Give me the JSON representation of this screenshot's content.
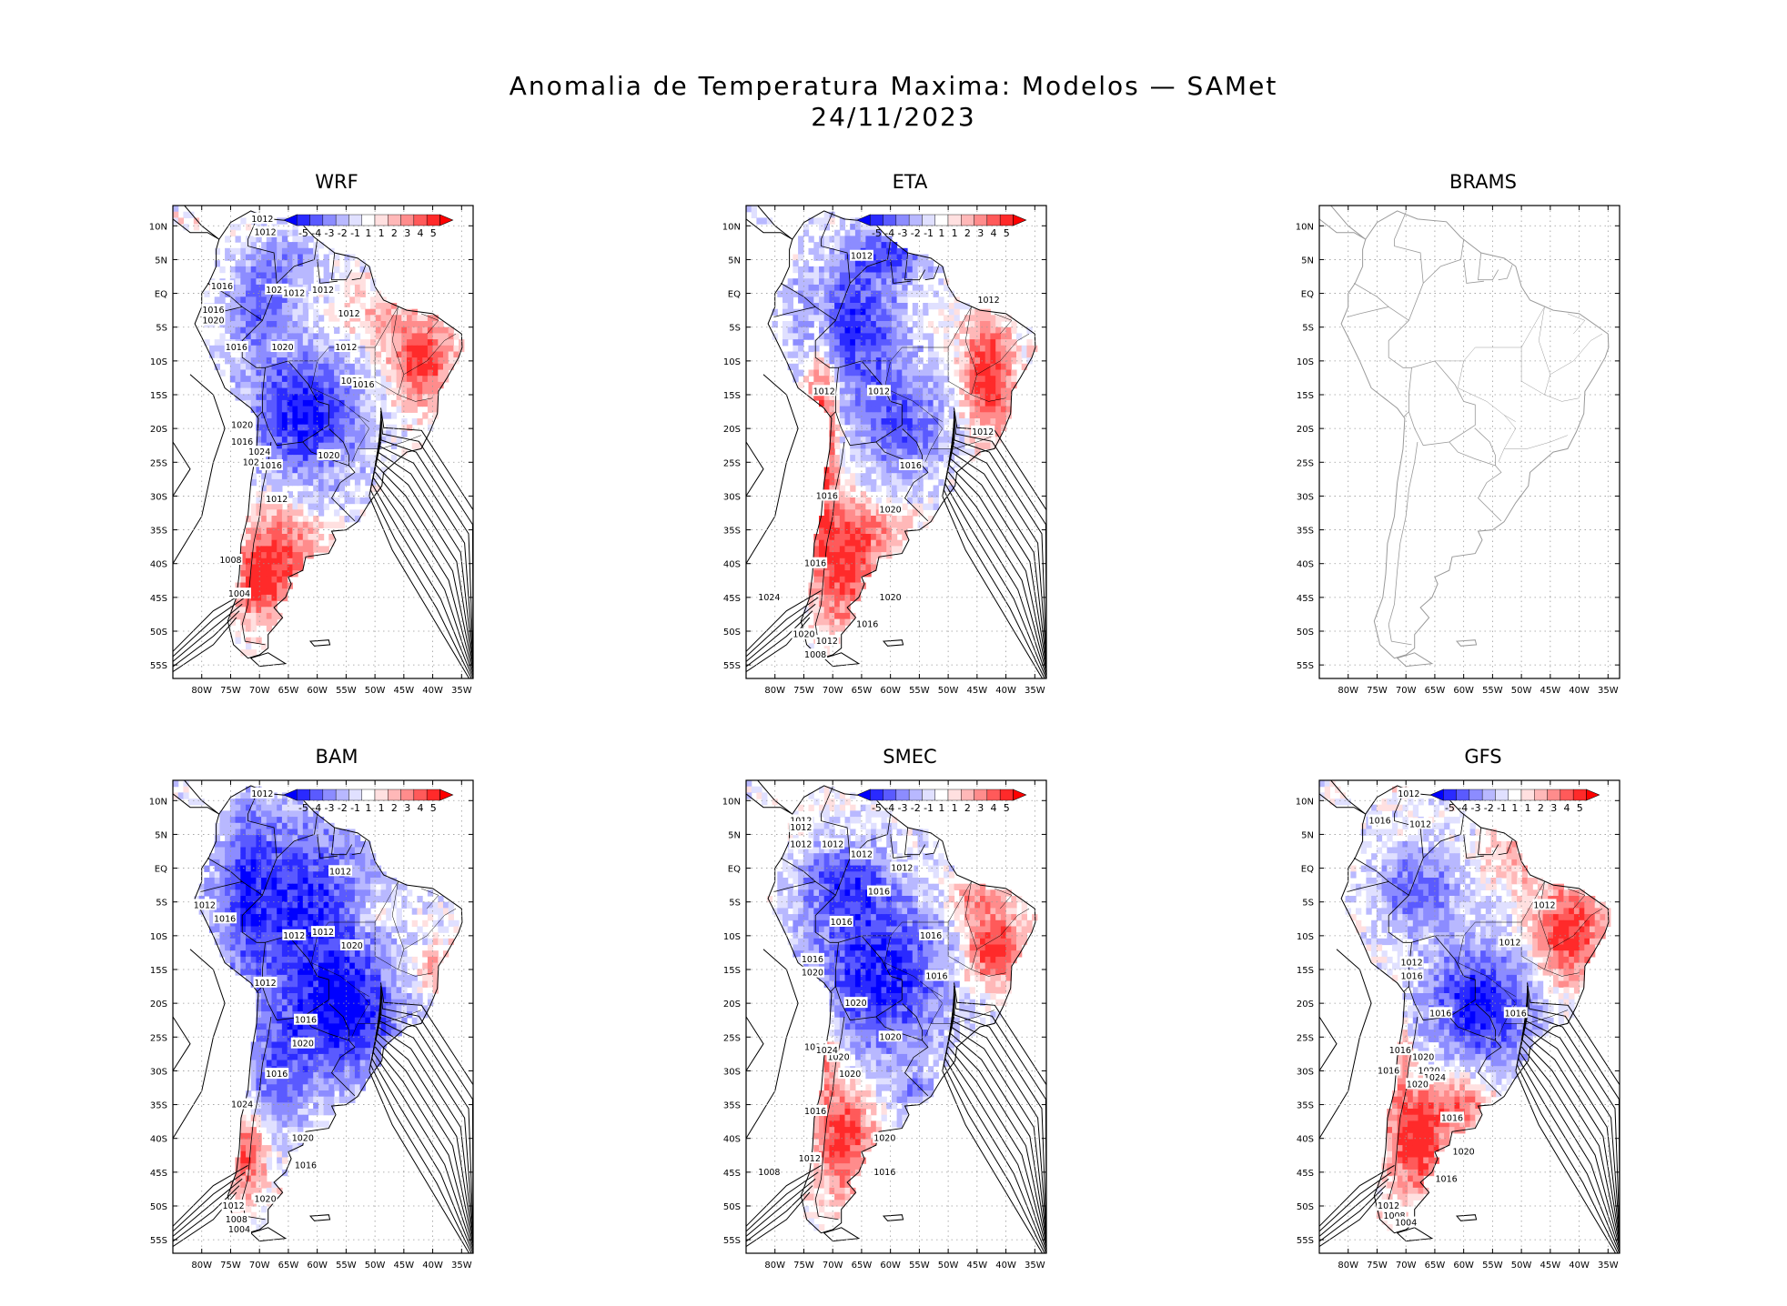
{
  "title": {
    "line1": "Anomalia de Temperatura Maxima: Modelos — SAMet",
    "line2": "24/11/2023"
  },
  "axes": {
    "lat_labels": [
      "10N",
      "5N",
      "EQ",
      "5S",
      "10S",
      "15S",
      "20S",
      "25S",
      "30S",
      "35S",
      "40S",
      "45S",
      "50S",
      "55S"
    ],
    "lon_labels": [
      "80W",
      "75W",
      "70W",
      "65W",
      "60W",
      "55W",
      "50W",
      "45W",
      "40W",
      "35W"
    ]
  },
  "colorbar": {
    "labels": [
      "-5",
      "-4",
      "-3",
      "-2",
      "-1",
      "1",
      "1",
      "2",
      "3",
      "4",
      "5"
    ],
    "colors": [
      "#0000ff",
      "#2a2aff",
      "#5a5aff",
      "#8c8cff",
      "#b8b8ff",
      "#e0e0ff",
      "#ffffff",
      "#ffe0e0",
      "#ffb8b8",
      "#ff8c8c",
      "#ff5a5a",
      "#ff2a2a",
      "#ff0000"
    ]
  },
  "chart_data": {
    "type": "heatmap",
    "panels": [
      {
        "name": "WRF",
        "has_data": true,
        "pattern": "wrf",
        "isobars": [
          "1012",
          "1012",
          "1016",
          "1020",
          "1016",
          "1020",
          "1012",
          "1012",
          "1012",
          "1012",
          "1016",
          "1020",
          "1020",
          "1016",
          "1020",
          "1016",
          "1024",
          "1024",
          "1020",
          "1016",
          "1012",
          "1008",
          "1004"
        ]
      },
      {
        "name": "ETA",
        "has_data": true,
        "pattern": "eta",
        "isobars": [
          "1012",
          "1012",
          "1012",
          "1012",
          "1012",
          "1016",
          "1016",
          "1020",
          "1016",
          "1020",
          "1024",
          "1016",
          "1020",
          "1012",
          "1008"
        ]
      },
      {
        "name": "BRAMS",
        "has_data": false,
        "pattern": "none",
        "isobars": []
      },
      {
        "name": "BAM",
        "has_data": true,
        "pattern": "bam",
        "isobars": [
          "1012",
          "1012",
          "1012",
          "1016",
          "1012",
          "1012",
          "1020",
          "1012",
          "1016",
          "1020",
          "1016",
          "1024",
          "1020",
          "1016",
          "1020",
          "1012",
          "1008",
          "1004"
        ]
      },
      {
        "name": "SMEC",
        "has_data": true,
        "pattern": "smec",
        "isobars": [
          "1012",
          "1012",
          "1012",
          "1012",
          "1012",
          "1012",
          "1016",
          "1016",
          "1016",
          "1016",
          "1016",
          "1020",
          "1020",
          "1020",
          "1024",
          "1020",
          "1024",
          "1020",
          "1016",
          "1020",
          "1012",
          "1016",
          "1008"
        ]
      },
      {
        "name": "GFS",
        "has_data": true,
        "pattern": "gfs",
        "isobars": [
          "1012",
          "1016",
          "1012",
          "1012",
          "1012",
          "1012",
          "1016",
          "1016",
          "1016",
          "1016",
          "1020",
          "1016",
          "1020",
          "1024",
          "1020",
          "1016",
          "1020",
          "1016",
          "1012",
          "1008",
          "1004"
        ]
      }
    ],
    "lat_range": [
      -57,
      13
    ],
    "lon_range": [
      -85,
      -33
    ],
    "colorbar_range": [
      -5,
      5
    ],
    "grid": true
  }
}
